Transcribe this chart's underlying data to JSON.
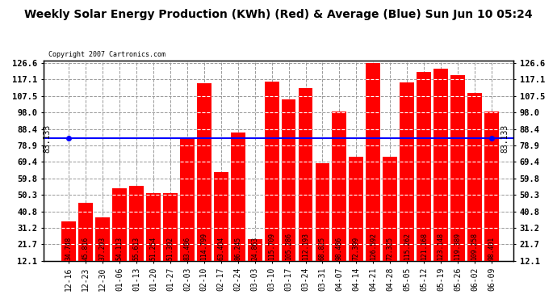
{
  "title": "Weekly Solar Energy Production (KWh) (Red) & Average (Blue) Sun Jun 10 05:24",
  "copyright": "Copyright 2007 Cartronics.com",
  "categories": [
    "12-16",
    "12-23",
    "12-30",
    "01-06",
    "01-13",
    "01-20",
    "01-27",
    "02-03",
    "02-10",
    "02-17",
    "02-24",
    "03-03",
    "03-10",
    "03-17",
    "03-24",
    "03-31",
    "04-07",
    "04-14",
    "04-21",
    "04-28",
    "05-05",
    "05-12",
    "05-19",
    "05-26",
    "06-02",
    "06-09"
  ],
  "values": [
    34.748,
    45.816,
    37.293,
    54.113,
    55.613,
    51.254,
    51.392,
    83.486,
    114.799,
    63.404,
    86.245,
    24.863,
    115.709,
    105.286,
    112.193,
    68.825,
    98.486,
    72.399,
    126.592,
    72.325,
    115.262,
    121.168,
    123.148,
    119.389,
    109.258,
    98.401
  ],
  "average": 83.133,
  "bar_color": "#ff0000",
  "avg_line_color": "#0000ff",
  "background_color": "#ffffff",
  "plot_bg_color": "#ffffff",
  "grid_color": "#999999",
  "title_fontsize": 10,
  "bar_label_fontsize": 6.0,
  "ytick_labels": [
    "12.1",
    "21.7",
    "31.2",
    "40.8",
    "50.3",
    "59.8",
    "69.4",
    "78.9",
    "88.4",
    "98.0",
    "107.5",
    "117.1",
    "126.6"
  ],
  "ytick_values": [
    12.1,
    21.7,
    31.2,
    40.8,
    50.3,
    59.8,
    69.4,
    78.9,
    88.4,
    98.0,
    107.5,
    117.1,
    126.6
  ],
  "ymin": 12.1,
  "ymax": 126.6,
  "avg_label": "83.133"
}
